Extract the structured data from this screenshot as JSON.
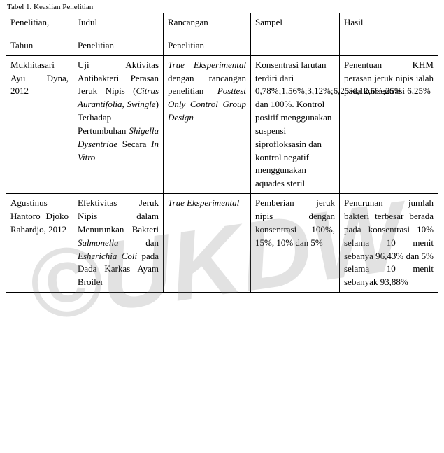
{
  "caption": "Tabel 1. Keaslian Penelitian",
  "table": {
    "columns": [
      {
        "line1": "Penelitian,",
        "line2": "Tahun"
      },
      {
        "line1": "Judul",
        "line2": "Penelitian"
      },
      {
        "line1": "Rancangan",
        "line2": "Penelitian"
      },
      {
        "line1": "Sampel",
        "line2": ""
      },
      {
        "line1": "Hasil",
        "line2": ""
      }
    ],
    "rows": [
      {
        "c1_html": "Mukhitasari Ayu Dyna, 2012",
        "c2_html": "Uji Aktivitas Antibakteri Perasan Jeruk Nipis (<span class=\"italic\">Citrus Aurantifolia, Swingle</span>) Terhadap Pertumbuhan <span class=\"italic\">Shigella Dysentriae</span> Secara <span class=\"italic\">In Vitro</span>",
        "c3_html": "<span class=\"italic\">True Eksperimental</span> dengan rancangan penelitian <span class=\"italic\">Posttest Only Control Group Design</span>",
        "c4_html": "Konsentrasi larutan terdiri dari 0,78%;1,56%;3,12%;6,25%;12,5%;25% dan 100%. Kontrol positif menggunakan suspensi siprofloksasin dan kontrol negatif menggunakan aquades steril",
        "c5_html": "Penentuan KHM perasan jeruk nipis ialah pada konsentrasi 6,25%"
      },
      {
        "c1_html": "Agustinus Hantoro Djoko Rahardjo, 2012",
        "c2_html": "Efektivitas Jeruk Nipis dalam Menurunkan Bakteri <span class=\"italic\">Salmonella</span> dan <span class=\"italic\">Esherichia Coli</span> pada Dada Karkas Ayam Broiler",
        "c3_html": "<span class=\"italic\">True Eksperimental</span>",
        "c4_html": "Pemberian jeruk nipis dengan konsentrasi 100%, 15%, 10% dan 5%",
        "c5_html": "Penurunan jumlah bakteri terbesar berada pada konsentrasi 10% selama 10 menit sebanya 96,43% dan 5% selama 10 menit sebanyak 93,88%"
      }
    ]
  },
  "watermark": {
    "text": "©UKDW",
    "color": "#808080"
  }
}
